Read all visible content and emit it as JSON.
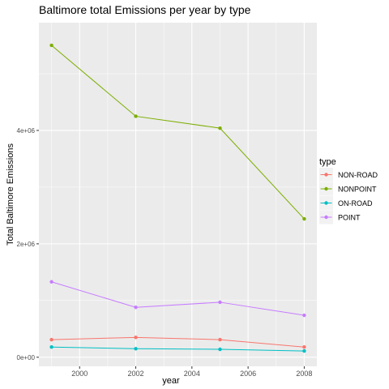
{
  "chart_data": {
    "type": "line",
    "title": "Baltimore total Emissions per year by type",
    "xlabel": "year",
    "ylabel": "Total Baltimore Emissions",
    "x": [
      1999,
      2002,
      2005,
      2008
    ],
    "xlim": [
      1998.55,
      2008.45
    ],
    "ylim": [
      -160000,
      5900000
    ],
    "x_ticks": [
      {
        "value": 2000,
        "label": "2000"
      },
      {
        "value": 2002,
        "label": "2002"
      },
      {
        "value": 2004,
        "label": "2004"
      },
      {
        "value": 2006,
        "label": "2006"
      },
      {
        "value": 2008,
        "label": "2008"
      }
    ],
    "y_ticks": [
      {
        "value": 0,
        "label": "0e+00"
      },
      {
        "value": 2000000,
        "label": "2e+06"
      },
      {
        "value": 4000000,
        "label": "4e+06"
      }
    ],
    "grid": true,
    "legend_title": "type",
    "legend_position": "right",
    "series": [
      {
        "name": "NON-ROAD",
        "color": "#F8766D",
        "values": [
          310000,
          350000,
          310000,
          180000
        ]
      },
      {
        "name": "NONPOINT",
        "color": "#7CAE00",
        "values": [
          5500000,
          4250000,
          4040000,
          2440000
        ]
      },
      {
        "name": "ON-ROAD",
        "color": "#00BFC4",
        "values": [
          180000,
          150000,
          140000,
          110000
        ]
      },
      {
        "name": "POINT",
        "color": "#C77CFF",
        "values": [
          1330000,
          880000,
          970000,
          740000
        ]
      }
    ]
  }
}
